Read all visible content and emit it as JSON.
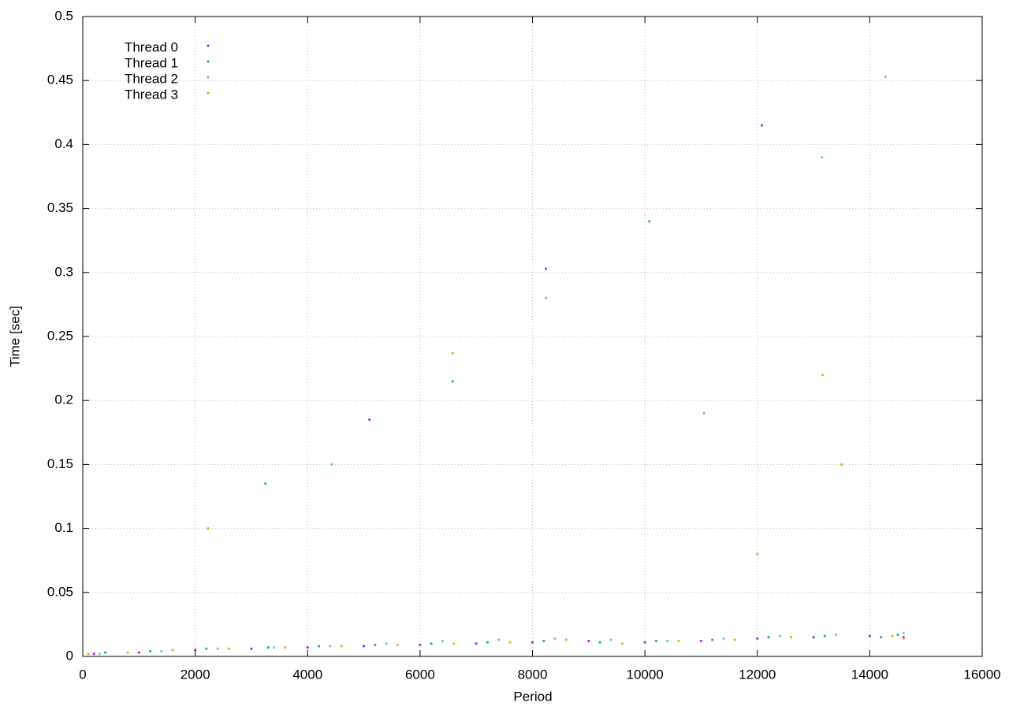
{
  "chart_data": {
    "type": "scatter",
    "x_label": "Period",
    "y_label": "Time [sec]",
    "xlim": [
      0,
      16000
    ],
    "xticks": [
      0,
      2000,
      4000,
      6000,
      8000,
      10000,
      12000,
      14000,
      16000
    ],
    "ylim": [
      0,
      0.5
    ],
    "yticks": [
      0,
      0.05,
      0.1,
      0.15,
      0.2,
      0.25,
      0.3,
      0.35,
      0.4,
      0.45,
      0.5
    ],
    "grid": true,
    "legend": "top-left",
    "series": [
      {
        "name": "Thread 0",
        "color": "#9400d3",
        "x": [
          200,
          1000,
          2000,
          3000,
          4000,
          5000,
          5100,
          6000,
          7000,
          8000,
          8240,
          9000,
          10000,
          11000,
          12000,
          12080,
          13000,
          14000,
          14600
        ],
        "values": [
          0.002,
          0.003,
          0.005,
          0.006,
          0.007,
          0.008,
          0.185,
          0.009,
          0.01,
          0.011,
          0.303,
          0.012,
          0.011,
          0.012,
          0.014,
          0.415,
          0.015,
          0.016,
          0.015
        ]
      },
      {
        "name": "Thread 1",
        "color": "#009e73",
        "x": [
          400,
          1200,
          2200,
          3250,
          3300,
          4200,
          5200,
          6200,
          6580,
          7200,
          8200,
          9200,
          10080,
          10200,
          11200,
          12200,
          13200,
          14200,
          14500
        ],
        "values": [
          0.003,
          0.004,
          0.006,
          0.135,
          0.007,
          0.008,
          0.009,
          0.01,
          0.215,
          0.011,
          0.012,
          0.011,
          0.34,
          0.012,
          0.013,
          0.015,
          0.016,
          0.015,
          0.017
        ]
      },
      {
        "name": "Thread 2",
        "color": "#56b4e9",
        "x": [
          300,
          1400,
          2400,
          3400,
          4430,
          4400,
          5400,
          6400,
          7400,
          8240,
          8400,
          9400,
          10400,
          11050,
          11400,
          12400,
          13150,
          13400,
          14280,
          14600
        ],
        "values": [
          0.002,
          0.004,
          0.006,
          0.007,
          0.15,
          0.008,
          0.01,
          0.012,
          0.013,
          0.28,
          0.014,
          0.013,
          0.012,
          0.19,
          0.014,
          0.016,
          0.39,
          0.017,
          0.453,
          0.018
        ]
      },
      {
        "name": "Thread 3",
        "color": "#e69f00",
        "x": [
          100,
          800,
          1600,
          2230,
          2600,
          3600,
          4600,
          5600,
          6580,
          6600,
          7600,
          8600,
          9600,
          10600,
          11600,
          12000,
          12600,
          13160,
          13500,
          14400,
          14600
        ],
        "values": [
          0.002,
          0.003,
          0.005,
          0.1,
          0.006,
          0.007,
          0.008,
          0.009,
          0.237,
          0.01,
          0.011,
          0.013,
          0.01,
          0.012,
          0.013,
          0.08,
          0.015,
          0.22,
          0.15,
          0.016,
          0.014
        ]
      }
    ]
  }
}
